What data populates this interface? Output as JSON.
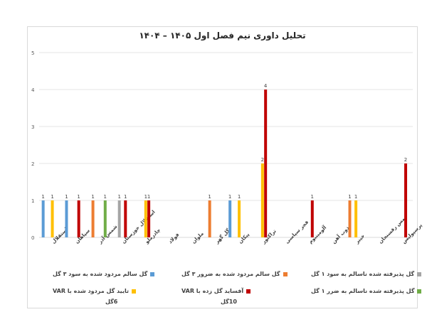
{
  "chart_data": {
    "type": "bar",
    "title": "تحلیل داوری نیم فصل اول ۱۴۰۵ – ۱۴۰۴",
    "xlabel": "",
    "ylabel": "",
    "ylim": [
      0,
      5
    ],
    "yticks": [
      0,
      1,
      2,
      3,
      4,
      5
    ],
    "grid": true,
    "legend_position": "bottom",
    "categories": [
      "استقلال",
      "سپاهان",
      "شمس آذر",
      "استقلال خوزستان",
      "چادرملو",
      "فولاد",
      "ملوان",
      "گل گهر",
      "پیکان",
      "تراکتور",
      "فجر سپاسی",
      "آلومینیوم",
      "ذوب آهن",
      "خیبر",
      "مس رفسنجان",
      "پرسپولیس"
    ],
    "series": [
      {
        "name": "گل سالم مردود شده به سود ۳ گل",
        "color": "#5B9BD5",
        "values": [
          1,
          1,
          0,
          0,
          0,
          0,
          0,
          0,
          1,
          0,
          0,
          0,
          0,
          0,
          0,
          0
        ]
      },
      {
        "name": "گل سالم مردود شده به ضرور ۳ گل",
        "color": "#ED7D31",
        "values": [
          0,
          0,
          1,
          0,
          0,
          0,
          0,
          1,
          0,
          0,
          0,
          0,
          0,
          1,
          0,
          0
        ]
      },
      {
        "name": "گل پذیرفته شده ناسالم به سود ۱ گل",
        "color": "#A5A5A5",
        "values": [
          0,
          0,
          0,
          1,
          0,
          0,
          0,
          0,
          0,
          0,
          0,
          0,
          0,
          0,
          0,
          0
        ]
      },
      {
        "name": "تایید گل مردود شده با VAR",
        "color": "#FFC000",
        "values": [
          1,
          0,
          0,
          0,
          1,
          0,
          0,
          0,
          1,
          2,
          0,
          0,
          0,
          1,
          0,
          0
        ]
      },
      {
        "name": "آفساید گل زده با VAR",
        "color": "#C00000",
        "values": [
          0,
          1,
          0,
          1,
          1,
          0,
          0,
          0,
          0,
          4,
          0,
          1,
          0,
          0,
          0,
          2
        ]
      },
      {
        "name": "گل پذیرفته شده ناسالم به ضرر ۱ گل",
        "color": "#70AD47",
        "values": [
          0,
          0,
          1,
          0,
          0,
          0,
          0,
          0,
          0,
          0,
          0,
          0,
          0,
          0,
          0,
          0
        ]
      }
    ],
    "annotations": [
      "۶گل",
      "۱۰گل"
    ]
  },
  "legend": {
    "items": [
      {
        "label": "گل سالم مردود شده به سود ۳ گل",
        "color": "#5B9BD5"
      },
      {
        "label": "گل سالم مردود شده به ضرور ۳ گل",
        "color": "#ED7D31"
      },
      {
        "label": "گل پذیرفته شده ناسالم به سود ۱ گل",
        "color": "#A5A5A5"
      },
      {
        "label": "تایید گل مردود شده با VAR",
        "color": "#FFC000"
      },
      {
        "label": "آفساید گل زده با VAR",
        "color": "#C00000"
      },
      {
        "label": "گل پذیرفته شده ناسالم به ضرر ۱ گل",
        "color": "#70AD47"
      }
    ],
    "totals": [
      "6گل",
      "10گل"
    ]
  }
}
